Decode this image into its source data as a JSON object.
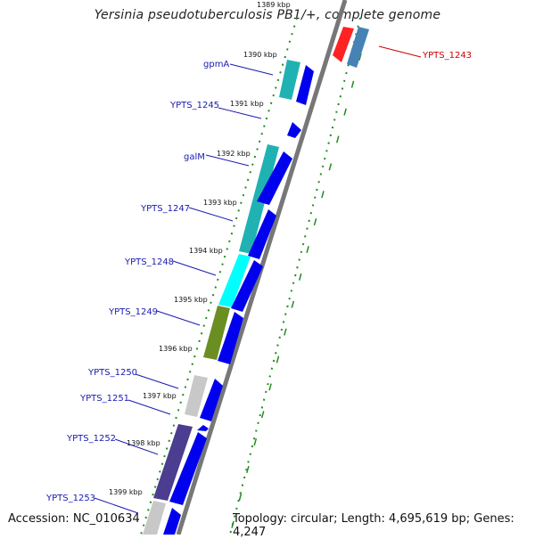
{
  "title": "Yersinia pseudotuberculosis PB1/+, complete genome",
  "footer": {
    "accession": "Accession: NC_010634",
    "topology": "Topology: circular; Length: 4,695,619 bp; Genes: 4,247"
  },
  "ticks": [
    "1389 kbp",
    "1390 kbp",
    "1391 kbp",
    "1392 kbp",
    "1393 kbp",
    "1394 kbp",
    "1395 kbp",
    "1396 kbp",
    "1397 kbp",
    "1398 kbp",
    "1399 kbp"
  ],
  "genes_left": [
    "gpmA",
    "YPTS_1245",
    "galM",
    "YPTS_1247",
    "YPTS_1248",
    "YPTS_1249",
    "YPTS_1250",
    "YPTS_1251",
    "YPTS_1252",
    "YPTS_1253"
  ],
  "gene_right": "YPTS_1243",
  "colors": {
    "cds": "#0000ee",
    "teal": "#20b2b2",
    "cyan": "#00ffff",
    "olive": "#6b8e23",
    "gray": "#c8c8c8",
    "purple": "#4b3d8f",
    "red": "#ff0000",
    "steel": "#4682b4",
    "grid": "#228b22",
    "label": "#1a1ab0"
  }
}
